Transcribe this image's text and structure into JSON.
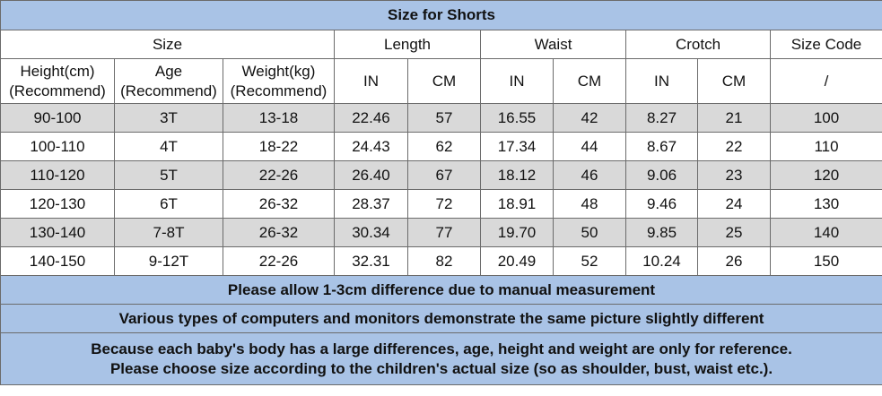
{
  "title": "Size for Shorts",
  "header": {
    "groups": [
      "Size",
      "Length",
      "Waist",
      "Crotch",
      "Size Code"
    ],
    "columns": [
      "Height(cm)\n(Recommend)",
      "Age\n(Recommend)",
      "Weight(kg)\n(Recommend)",
      "IN",
      "CM",
      "IN",
      "CM",
      "IN",
      "CM",
      "/"
    ]
  },
  "rows": [
    [
      "90-100",
      "3T",
      "13-18",
      "22.46",
      "57",
      "16.55",
      "42",
      "8.27",
      "21",
      "100"
    ],
    [
      "100-110",
      "4T",
      "18-22",
      "24.43",
      "62",
      "17.34",
      "44",
      "8.67",
      "22",
      "110"
    ],
    [
      "110-120",
      "5T",
      "22-26",
      "26.40",
      "67",
      "18.12",
      "46",
      "9.06",
      "23",
      "120"
    ],
    [
      "120-130",
      "6T",
      "26-32",
      "28.37",
      "72",
      "18.91",
      "48",
      "9.46",
      "24",
      "130"
    ],
    [
      "130-140",
      "7-8T",
      "26-32",
      "30.34",
      "77",
      "19.70",
      "50",
      "9.85",
      "25",
      "140"
    ],
    [
      "140-150",
      "9-12T",
      "22-26",
      "32.31",
      "82",
      "20.49",
      "52",
      "10.24",
      "26",
      "150"
    ]
  ],
  "notes": [
    "Please allow 1-3cm difference due to manual measurement",
    "Various types of computers and monitors demonstrate the same picture slightly different",
    "Because each baby's body has a large differences, age, height and weight are only for reference.\nPlease choose size according to the children's actual size (so as shoulder, bust, waist etc.)."
  ]
}
